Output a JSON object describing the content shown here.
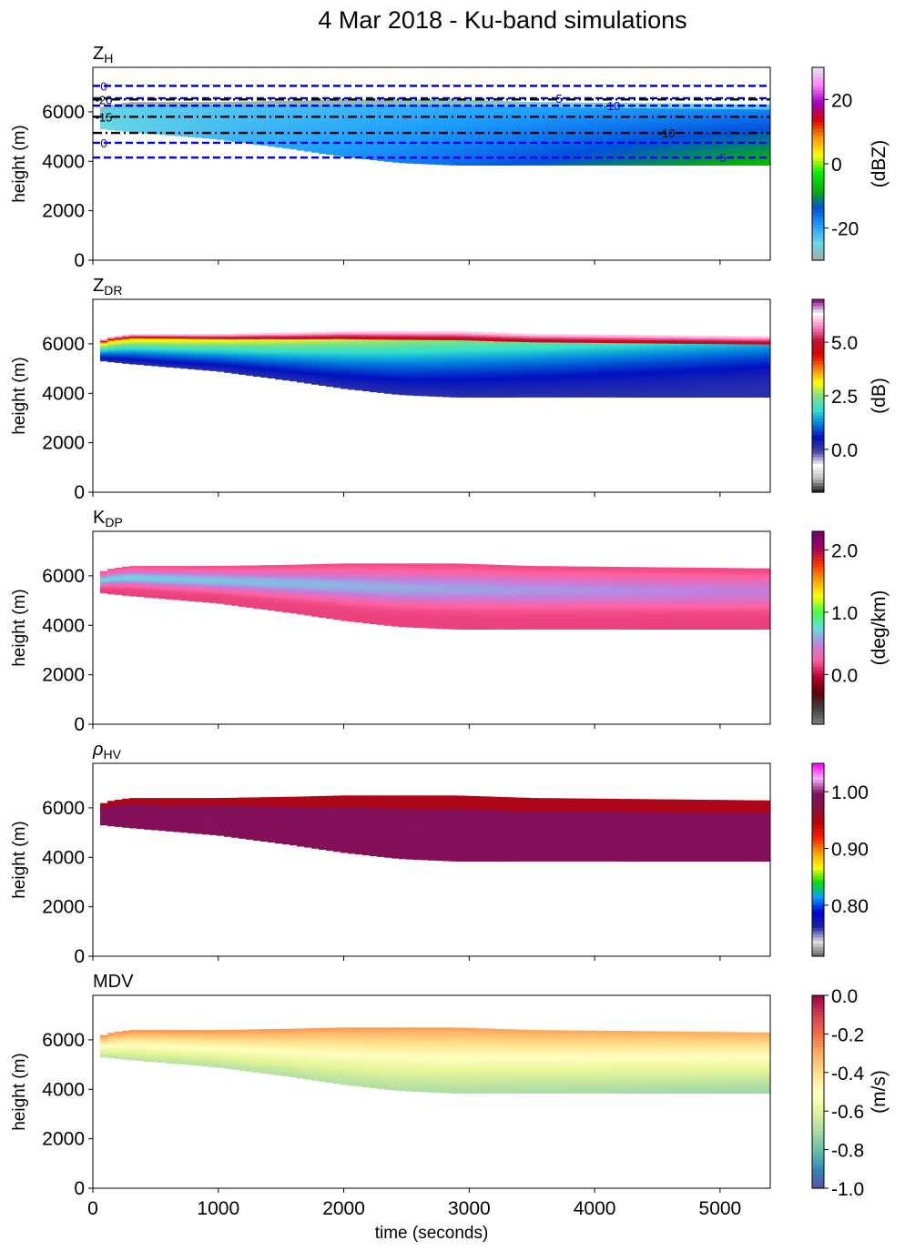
{
  "title": "4 Mar 2018 - Ku-band simulations",
  "chart_data": {
    "type": "heatmap",
    "xlabel": "time (seconds)",
    "ylabel": "height (m)",
    "xlim": [
      0,
      5400
    ],
    "ylim": [
      0,
      7800
    ],
    "xticks": [
      "0",
      "1000",
      "2000",
      "3000",
      "4000",
      "5000"
    ],
    "yticks": [
      "0",
      "2000",
      "4000",
      "6000"
    ],
    "echo_extent": {
      "time": [
        0,
        100,
        300,
        1000,
        1600,
        2000,
        2450,
        2900,
        3500,
        5400
      ],
      "top": [
        5800,
        6250,
        6400,
        6400,
        6450,
        6500,
        6500,
        6500,
        6400,
        6300
      ],
      "bottom": [
        5400,
        5300,
        5200,
        4900,
        4500,
        4200,
        3950,
        3850,
        3850,
        3850
      ]
    },
    "panels": [
      {
        "key": "zh",
        "title_main": "Z",
        "title_sub": "H",
        "unit": "(dBZ)",
        "range": [
          -30,
          30
        ],
        "colorbar_ticks": [
          "20",
          "0",
          "-20"
        ],
        "colorbar_tick_values": [
          20,
          0,
          -20
        ],
        "colormap": [
          "#a9a9a9",
          "#69d7e6",
          "#1ea0ff",
          "#0050dc",
          "#00b400",
          "#00f000",
          "#ffff00",
          "#ff9600",
          "#e10000",
          "#a000c8",
          "#ff82ff",
          "#e6e6e6"
        ],
        "temperature_contours": [
          {
            "label": "0",
            "height": 7050,
            "style": "dashed",
            "color": "#0000ee"
          },
          {
            "label": "-5",
            "height": 6550,
            "style": "dashed",
            "color": "#0000ee"
          },
          {
            "label": "-20",
            "height": 6500,
            "style": "dashdot",
            "color": "#000000"
          },
          {
            "label": "-10",
            "height": 6250,
            "style": "dashed",
            "color": "#0000ee"
          },
          {
            "label": "-15",
            "height": 5800,
            "style": "dashdot",
            "color": "#000000"
          },
          {
            "label": "-10",
            "height": 5150,
            "style": "dashdot",
            "color": "#000000"
          },
          {
            "label": "0",
            "height": 4750,
            "style": "dashed",
            "color": "#0000ee"
          },
          {
            "label": "-5",
            "height": 4150,
            "style": "dashed",
            "color": "#0000ee"
          }
        ]
      },
      {
        "key": "zdr",
        "title_main": "Z",
        "title_sub": "DR",
        "unit": "(dB)",
        "range": [
          -2,
          7
        ],
        "colorbar_ticks": [
          "5.0",
          "2.5",
          "0.0"
        ],
        "colorbar_tick_values": [
          5,
          2.5,
          0
        ],
        "colormap": [
          "#111111",
          "#bbbbbb",
          "#ffffff",
          "#4040a0",
          "#0010c0",
          "#0080e0",
          "#30e0d0",
          "#80e080",
          "#ffff00",
          "#ff8000",
          "#e00000",
          "#c01030",
          "#ff80c0",
          "#ffffff",
          "#800080"
        ]
      },
      {
        "key": "kdp",
        "title_main": "K",
        "title_sub": "DP",
        "unit": "(deg/km)",
        "range": [
          -0.8,
          2.3
        ],
        "colorbar_ticks": [
          "2.0",
          "1.0",
          "0.0"
        ],
        "colorbar_tick_values": [
          2,
          1,
          0
        ],
        "colormap": [
          "#808080",
          "#404040",
          "#600000",
          "#c00030",
          "#ff60a0",
          "#c080e0",
          "#60e0e0",
          "#40ff40",
          "#ffff00",
          "#ffa000",
          "#ff3000",
          "#a00060",
          "#700070"
        ]
      },
      {
        "key": "rhohv",
        "title_main": "ρ",
        "title_sub": "HV",
        "unit": "",
        "range": [
          0.71,
          1.05
        ],
        "colorbar_ticks": [
          "1.00",
          "0.90",
          "0.80"
        ],
        "colorbar_tick_values": [
          1.0,
          0.9,
          0.8
        ],
        "colormap": [
          "#606060",
          "#e0e0e0",
          "#2020a0",
          "#0000e0",
          "#00a0ff",
          "#00e000",
          "#ffff00",
          "#ffa000",
          "#ff2000",
          "#c00000",
          "#8c1040",
          "#801060",
          "#ffb0ff",
          "#ff00ff"
        ]
      },
      {
        "key": "mdv",
        "title_main": "MDV",
        "title_sub": "",
        "unit": "(m/s)",
        "range": [
          -1.0,
          0.0
        ],
        "colorbar_ticks": [
          "0.0",
          "-0.2",
          "-0.4",
          "-0.6",
          "-0.8",
          "-1.0"
        ],
        "colorbar_tick_values": [
          0,
          -0.2,
          -0.4,
          -0.6,
          -0.8,
          -1.0
        ],
        "colormap": [
          "#5e4fa2",
          "#3288bd",
          "#66c2a5",
          "#abdda4",
          "#e6f598",
          "#ffffbf",
          "#fee08b",
          "#fdae61",
          "#f46d43",
          "#d53e4f",
          "#9e0142"
        ]
      }
    ]
  }
}
